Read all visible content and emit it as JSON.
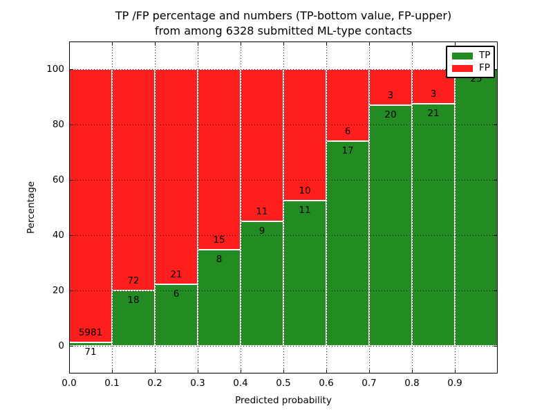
{
  "chart_data": {
    "type": "bar",
    "stacked": true,
    "title_line1": "TP /FP percentage and numbers (TP-bottom value, FP-upper)",
    "title_line2": "from among 6328 submitted ML-type contacts",
    "xlabel": "Predicted probability",
    "ylabel": "Percentage",
    "total_contacts": 6328,
    "xlim": [
      0.0,
      1.0
    ],
    "ylim": [
      -10,
      110
    ],
    "bin_width": 0.1,
    "bin_starts": [
      0.0,
      0.1,
      0.2,
      0.3,
      0.4,
      0.5,
      0.6,
      0.7,
      0.8,
      0.9
    ],
    "series": [
      {
        "name": "TP",
        "color": "#228B22",
        "counts": [
          71,
          18,
          6,
          8,
          9,
          11,
          17,
          20,
          21,
          25
        ]
      },
      {
        "name": "FP",
        "color": "#FF1E1E",
        "counts": [
          5981,
          72,
          21,
          15,
          11,
          10,
          6,
          3,
          3,
          0
        ]
      }
    ],
    "x_ticks": [
      {
        "pos": 0.0,
        "label": "0.0"
      },
      {
        "pos": 0.1,
        "label": "0.1"
      },
      {
        "pos": 0.2,
        "label": "0.2"
      },
      {
        "pos": 0.3,
        "label": "0.3"
      },
      {
        "pos": 0.4,
        "label": "0.4"
      },
      {
        "pos": 0.5,
        "label": "0.5"
      },
      {
        "pos": 0.6,
        "label": "0.6"
      },
      {
        "pos": 0.7,
        "label": "0.7"
      },
      {
        "pos": 0.8,
        "label": "0.8"
      },
      {
        "pos": 0.9,
        "label": "0.9"
      }
    ],
    "y_ticks": [
      {
        "pos": 0,
        "label": "0"
      },
      {
        "pos": 20,
        "label": "20"
      },
      {
        "pos": 40,
        "label": "40"
      },
      {
        "pos": 60,
        "label": "60"
      },
      {
        "pos": 80,
        "label": "80"
      },
      {
        "pos": 100,
        "label": "100"
      }
    ],
    "grid": true,
    "legend": {
      "position": "upper right",
      "items": [
        {
          "label": "TP",
          "color": "#228B22"
        },
        {
          "label": "FP",
          "color": "#FF1E1E"
        }
      ]
    }
  }
}
